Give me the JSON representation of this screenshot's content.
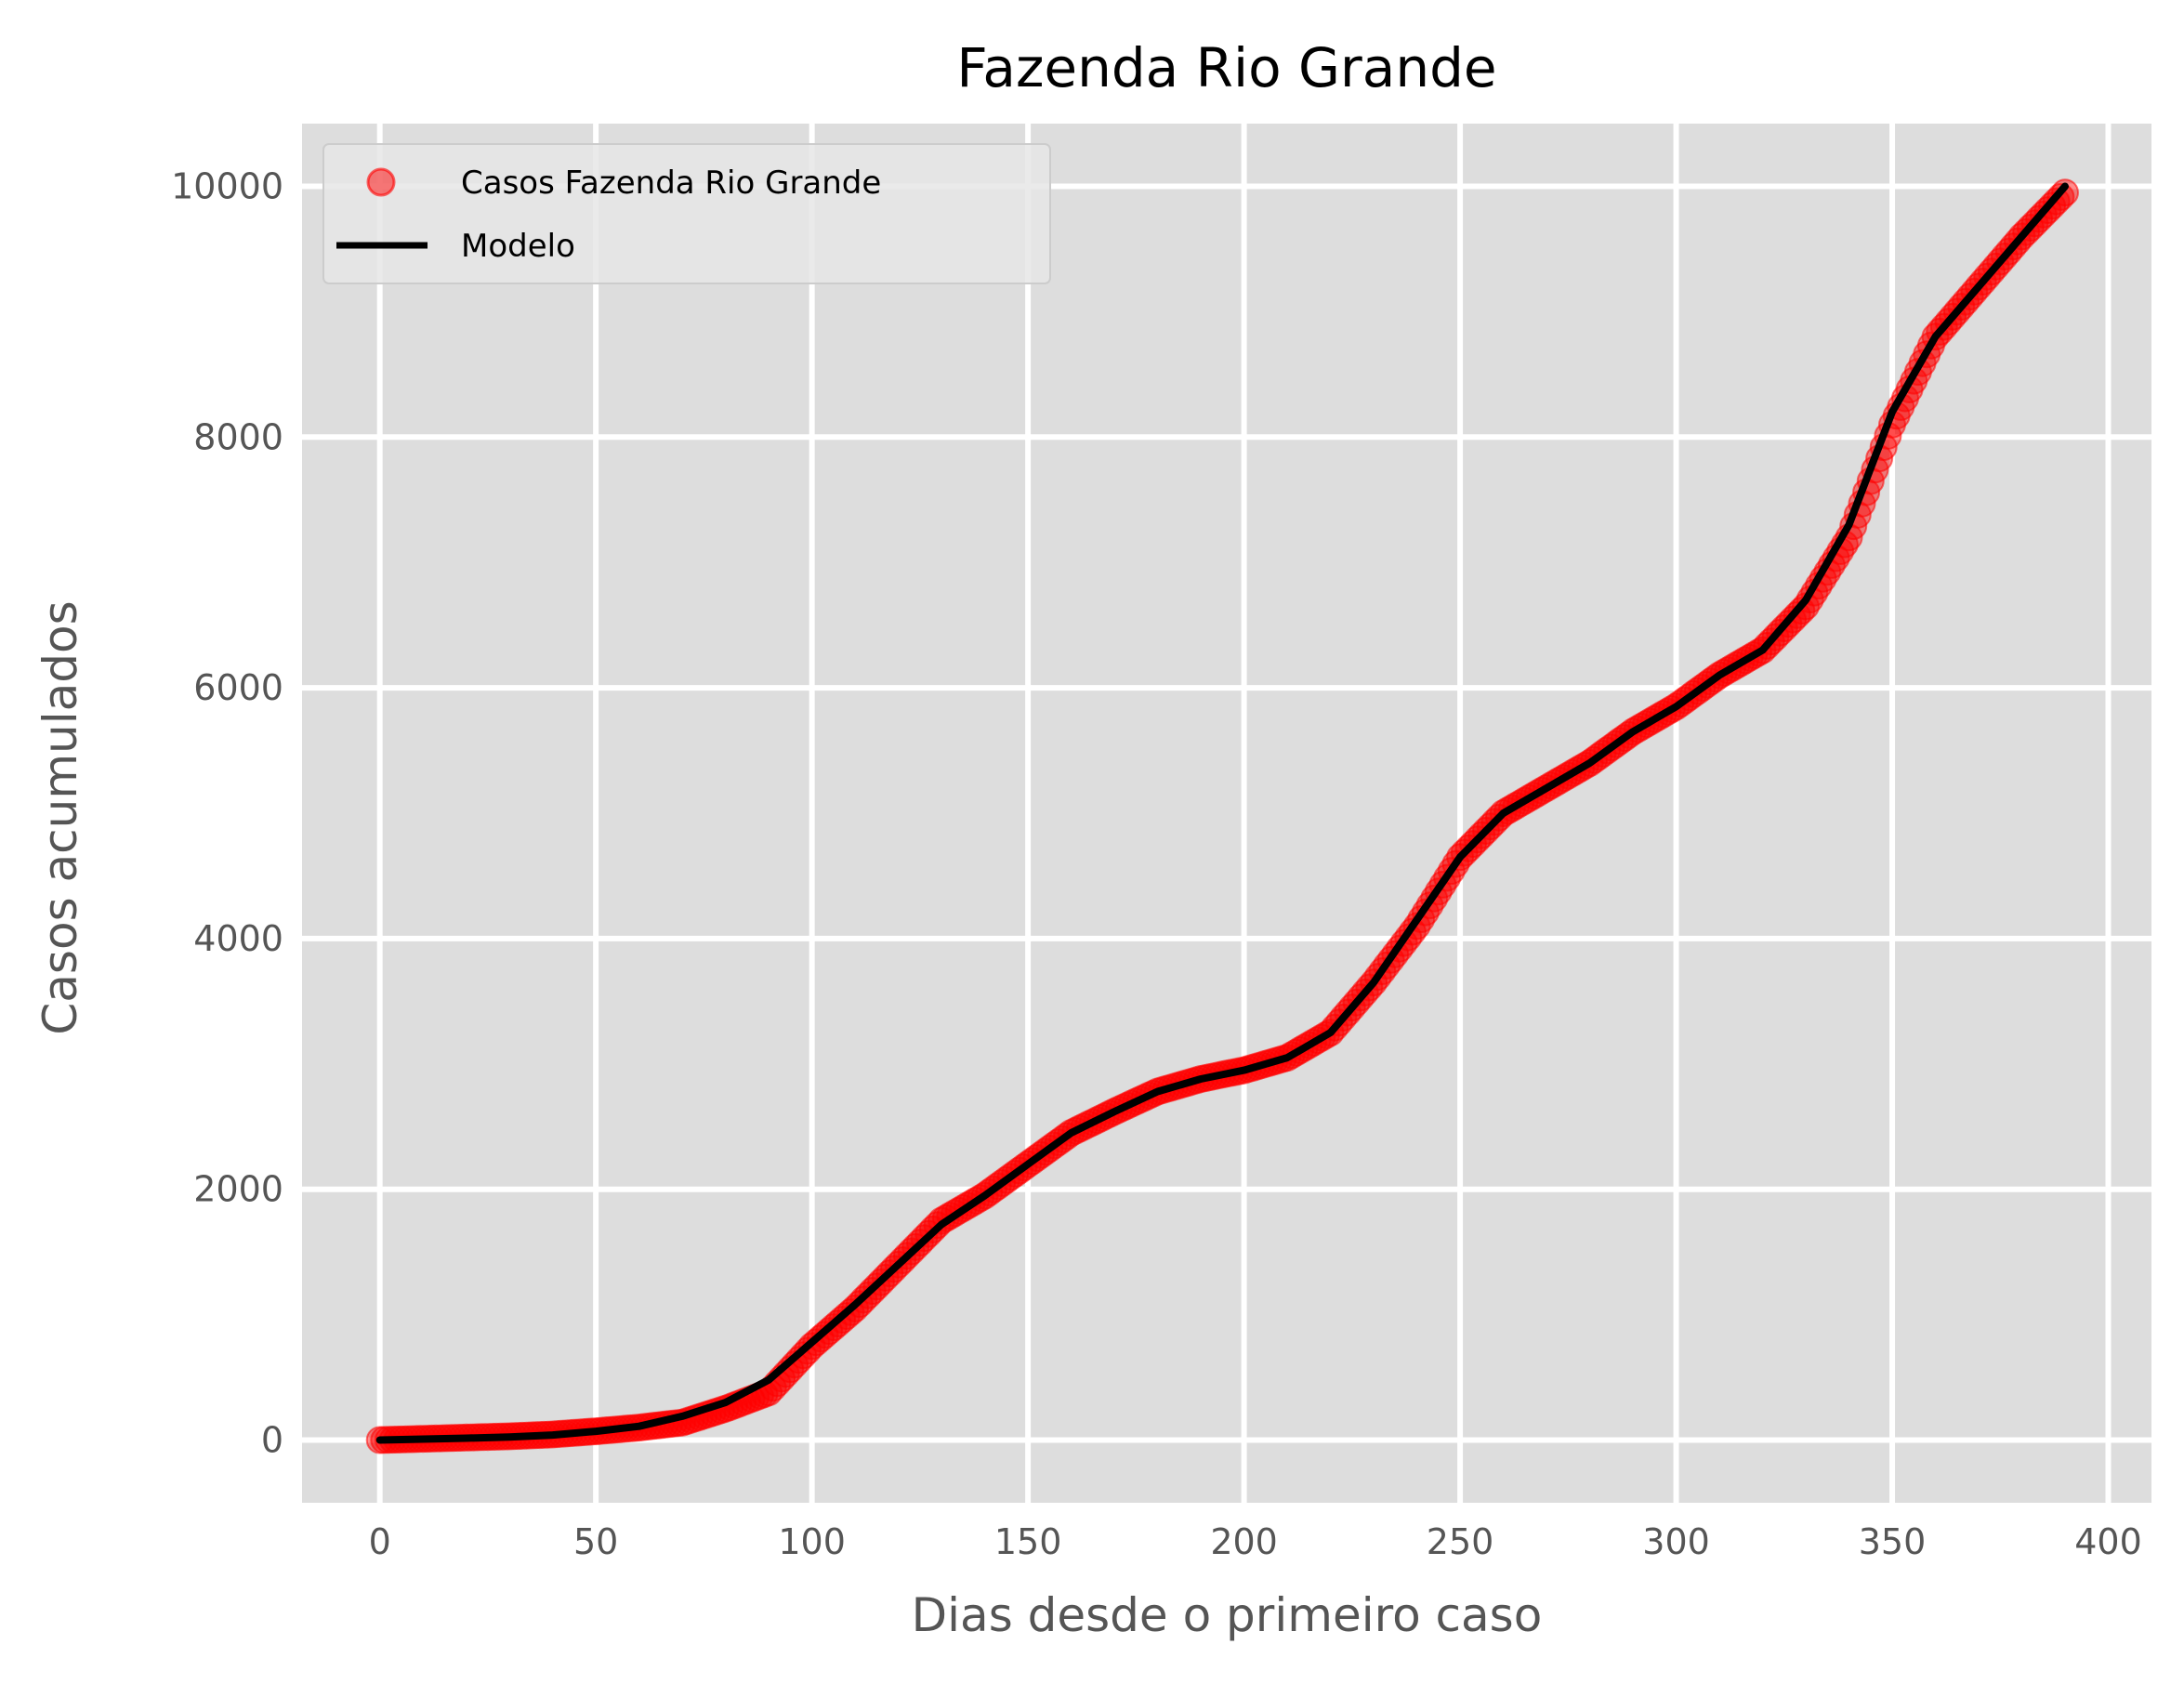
{
  "chart_data": {
    "type": "scatter",
    "title": "Fazenda Rio Grande",
    "xlabel": "Dias desde o primeiro caso",
    "ylabel": "Casos acumulados",
    "xlim": [
      -18,
      410
    ],
    "ylim": [
      -500,
      10500
    ],
    "xticks": [
      0,
      50,
      100,
      150,
      200,
      250,
      300,
      350,
      400
    ],
    "yticks": [
      0,
      2000,
      4000,
      6000,
      8000,
      10000
    ],
    "grid": true,
    "legend_position": "top-left",
    "colors": {
      "background": "#dddddd",
      "grid": "#ffffff",
      "points": "#ff0000",
      "model": "#000000"
    },
    "series": [
      {
        "name": "Casos Fazenda Rio Grande",
        "kind": "points",
        "x": [
          0,
          10,
          20,
          30,
          40,
          50,
          60,
          70,
          80,
          90,
          100,
          110,
          120,
          130,
          140,
          150,
          160,
          170,
          180,
          190,
          200,
          210,
          220,
          230,
          240,
          250,
          260,
          270,
          280,
          290,
          300,
          310,
          320,
          330,
          340,
          350,
          360,
          370,
          380,
          390
        ],
        "y": [
          0,
          10,
          20,
          30,
          45,
          70,
          100,
          140,
          250,
          380,
          750,
          1050,
          1400,
          1750,
          1950,
          2200,
          2450,
          2620,
          2780,
          2880,
          2950,
          3050,
          3250,
          3650,
          4100,
          4650,
          5000,
          5200,
          5400,
          5650,
          5850,
          6100,
          6300,
          6650,
          7200,
          8100,
          8800,
          9200,
          9600,
          9950
        ]
      },
      {
        "name": "Modelo",
        "kind": "line",
        "x": [
          0,
          10,
          20,
          30,
          40,
          50,
          60,
          70,
          80,
          90,
          100,
          110,
          120,
          130,
          140,
          150,
          160,
          170,
          180,
          190,
          200,
          210,
          220,
          230,
          240,
          250,
          260,
          270,
          280,
          290,
          300,
          310,
          320,
          330,
          340,
          350,
          360,
          370,
          380,
          390
        ],
        "y": [
          0,
          8,
          15,
          25,
          40,
          70,
          110,
          190,
          300,
          480,
          780,
          1080,
          1400,
          1720,
          1950,
          2200,
          2450,
          2620,
          2780,
          2880,
          2950,
          3050,
          3250,
          3650,
          4150,
          4650,
          5000,
          5200,
          5400,
          5650,
          5850,
          6100,
          6300,
          6700,
          7300,
          8200,
          8800,
          9200,
          9600,
          10000
        ]
      }
    ]
  }
}
